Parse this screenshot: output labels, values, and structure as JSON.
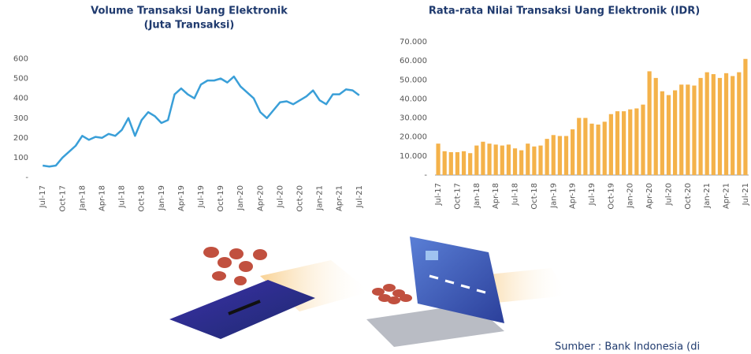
{
  "chart_data": [
    {
      "type": "line",
      "title": "Volume Transaksi Uang Elektronik",
      "subtitle": "(Juta Transaksi)",
      "categories": [
        "Jul-17",
        null,
        null,
        "Oct-17",
        null,
        null,
        "Jan-18",
        null,
        null,
        "Apr-18",
        null,
        null,
        "Jul-18",
        null,
        null,
        "Oct-18",
        null,
        null,
        "Jan-19",
        null,
        null,
        "Apr-19",
        null,
        null,
        "Jul-19",
        null,
        null,
        "Oct-19",
        null,
        null,
        "Jan-20",
        null,
        null,
        "Apr-20",
        null,
        null,
        "Jul-20",
        null,
        null,
        "Oct-20",
        null,
        null,
        "Jan-21",
        null,
        null,
        "Apr-21",
        null,
        null,
        "Jul-21"
      ],
      "values": [
        60,
        55,
        60,
        100,
        130,
        160,
        210,
        190,
        205,
        200,
        220,
        210,
        240,
        300,
        210,
        290,
        330,
        310,
        275,
        290,
        420,
        450,
        420,
        400,
        470,
        490,
        490,
        500,
        480,
        510,
        460,
        430,
        400,
        330,
        300,
        340,
        380,
        385,
        370,
        390,
        410,
        440,
        390,
        370,
        420,
        420,
        445,
        440,
        415
      ],
      "color": "#3a9fd8",
      "ylim": [
        0,
        650
      ],
      "yticks": [
        {
          "value": 0,
          "label": "-"
        },
        100,
        200,
        300,
        400,
        500,
        600
      ]
    },
    {
      "type": "bar",
      "title": "Rata-rata Nilai Transaksi Uang Elektronik (IDR)",
      "categories": [
        "Jul-17",
        null,
        null,
        "Oct-17",
        null,
        null,
        "Jan-18",
        null,
        null,
        "Apr-18",
        null,
        null,
        "Jul-18",
        null,
        null,
        "Oct-18",
        null,
        null,
        "Jan-19",
        null,
        null,
        "Apr-19",
        null,
        null,
        "Jul-19",
        null,
        null,
        "Oct-19",
        null,
        null,
        "Jan-20",
        null,
        null,
        "Apr-20",
        null,
        null,
        "Jul-20",
        null,
        null,
        "Oct-20",
        null,
        null,
        "Jan-21",
        null,
        null,
        "Apr-21",
        null,
        null,
        "Jul-21"
      ],
      "values": [
        16500,
        12500,
        12000,
        12000,
        12500,
        11500,
        15500,
        17500,
        16500,
        16000,
        15500,
        16000,
        14000,
        13000,
        16500,
        15000,
        15500,
        19000,
        21000,
        20500,
        20500,
        24000,
        30000,
        30000,
        27000,
        26500,
        28000,
        32000,
        33500,
        33500,
        34500,
        35000,
        37000,
        54500,
        51000,
        44000,
        42000,
        44500,
        47500,
        47500,
        47000,
        51000,
        54000,
        53000,
        51000,
        53500,
        52000,
        54000,
        61000
      ],
      "color": "#f4b24a",
      "ylim": [
        0,
        70000
      ],
      "yticks": [
        {
          "value": 0,
          "label": "-"
        },
        {
          "value": 10000,
          "label": "10.000"
        },
        {
          "value": 20000,
          "label": "20.000"
        },
        {
          "value": 30000,
          "label": "30.000"
        },
        {
          "value": 40000,
          "label": "40.000"
        },
        {
          "value": 50000,
          "label": "50.000"
        },
        {
          "value": 60000,
          "label": "60.000"
        },
        {
          "value": 70000,
          "label": "70.000"
        }
      ]
    }
  ],
  "source": "Sumber : Bank Indonesia (di"
}
